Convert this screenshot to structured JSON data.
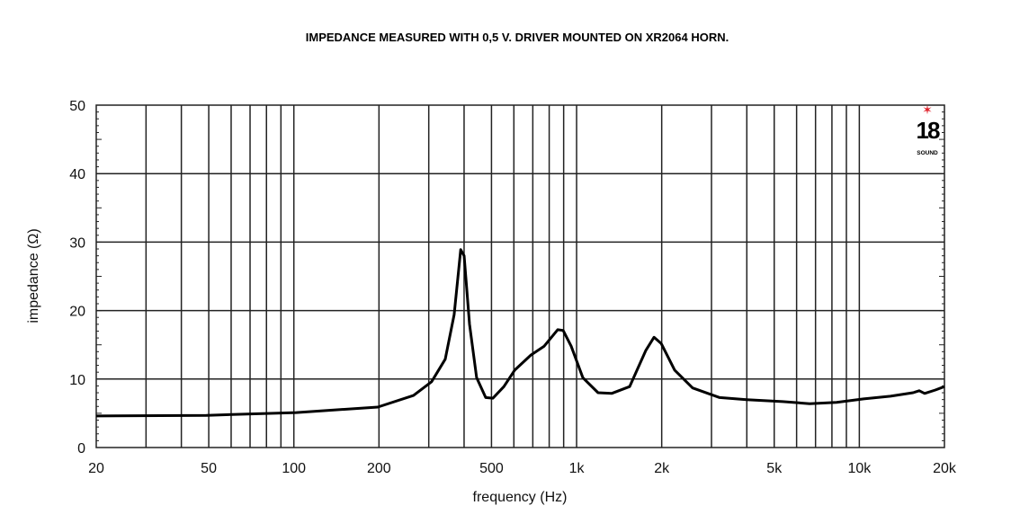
{
  "chart_data": {
    "type": "line",
    "title": "IMPEDANCE MEASURED WITH 0,5 V. DRIVER MOUNTED ON XR2064 HORN.",
    "xlabel": "frequency (Hz)",
    "ylabel": "impedance (Ω)",
    "xscale": "log",
    "xlim": [
      20,
      20000
    ],
    "ylim": [
      0,
      50
    ],
    "grid": true,
    "x_ticks": [
      20,
      50,
      100,
      200,
      500,
      1000,
      2000,
      5000,
      10000,
      20000
    ],
    "x_tick_labels": [
      "20",
      "50",
      "100",
      "200",
      "500",
      "1k",
      "2k",
      "5k",
      "10k",
      "20k"
    ],
    "y_ticks": [
      0,
      10,
      20,
      30,
      40,
      50
    ],
    "y_tick_labels": [
      "0",
      "10",
      "20",
      "30",
      "40",
      "50"
    ],
    "series": [
      {
        "name": "impedance",
        "color": "#000000",
        "x": [
          20,
          49,
          102,
          198,
          265,
          307,
          343,
          369,
          389,
          400,
          418,
          443,
          477,
          506,
          553,
          604,
          689,
          768,
          857,
          896,
          957,
          1052,
          1191,
          1330,
          1540,
          1758,
          1879,
          1991,
          2223,
          2571,
          3206,
          3991,
          5355,
          6670,
          8310,
          10350,
          12890,
          15490,
          16290,
          17020,
          18580,
          20000
        ],
        "y": [
          4.6,
          4.7,
          5.1,
          5.9,
          7.6,
          9.6,
          12.9,
          19.4,
          28.9,
          28.0,
          18.0,
          10.2,
          7.3,
          7.2,
          8.9,
          11.3,
          13.5,
          14.8,
          17.2,
          17.1,
          14.8,
          10.2,
          8.0,
          7.9,
          8.9,
          14.2,
          16.1,
          15.2,
          11.3,
          8.7,
          7.3,
          7.0,
          6.7,
          6.4,
          6.6,
          7.1,
          7.5,
          8.0,
          8.3,
          7.9,
          8.4,
          8.9
        ]
      }
    ],
    "logo": {
      "number": "18",
      "text": "SOUND",
      "star_color": "#e0202a"
    }
  }
}
